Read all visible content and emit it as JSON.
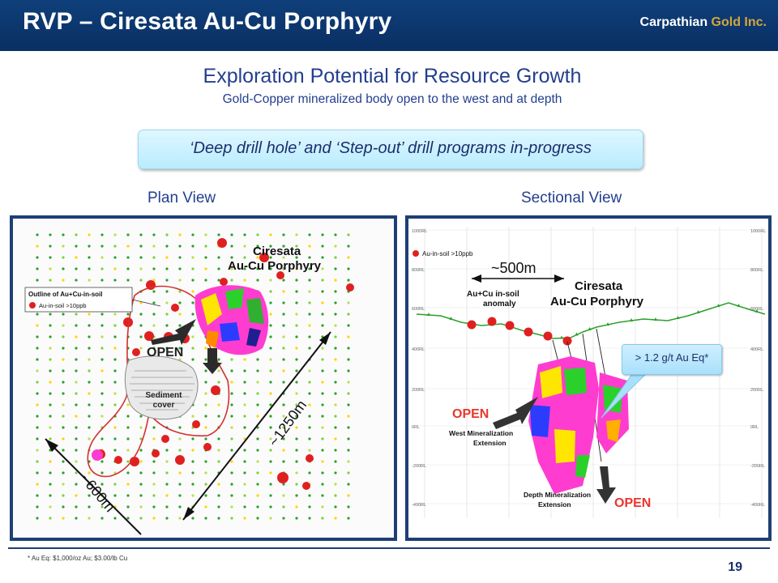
{
  "header": {
    "title": "RVP – Ciresata Au-Cu Porphyry",
    "brand_part1": "Carpathian",
    "brand_part2": "Gold Inc."
  },
  "subtitle": "Exploration Potential for Resource Growth",
  "subsubtitle": "Gold-Copper mineralized body open to the west and at depth",
  "callout": "‘Deep drill hole’ and ‘Step-out’ drill programs in-progress",
  "plan_view": {
    "label": "Plan View",
    "deposit_label_line1": "Ciresata",
    "deposit_label_line2": "Au-Cu Porphyry",
    "legend_title": "Outline of Au+Cu-in-soil",
    "legend_item": "Au-in-soil >10ppb",
    "open_label": "OPEN",
    "sediment_label_line1": "Sediment",
    "sediment_label_line2": "cover",
    "dim_long": "~1250m",
    "dim_short": "~600m"
  },
  "sectional_view": {
    "label": "Sectional View",
    "legend_item": "Au-in-soil >10ppb",
    "dim": "~500m",
    "anomaly_line1": "Au+Cu in-soil",
    "anomaly_line2": "anomaly",
    "deposit_label_line1": "Ciresata",
    "deposit_label_line2": "Au-Cu Porphyry",
    "open_west": "OPEN",
    "west_ext_line1": "West Mineralization",
    "west_ext_line2": "Extension",
    "depth_ext_line1": "Depth Mineralization",
    "depth_ext_line2": "Extension",
    "open_depth": "OPEN",
    "grade_callout": "> 1.2 g/t Au Eq*",
    "elevations": [
      "1000RL",
      "800RL",
      "600RL",
      "400RL",
      "200RL",
      "0RL",
      "-200RL",
      "-400RL"
    ]
  },
  "footnote": "*  Au Eq: $1,000/oz Au; $3.00/lb Cu",
  "page_number": "19",
  "colors": {
    "header_bg": "#0a2f63",
    "brand_gold": "#d4a73a",
    "title_blue": "#233f8e",
    "callout_bg": "#b9ecff",
    "panel_border": "#1d3f74",
    "soil_dot_red": "#e02020",
    "open_arrow_red": "#e8362c"
  }
}
